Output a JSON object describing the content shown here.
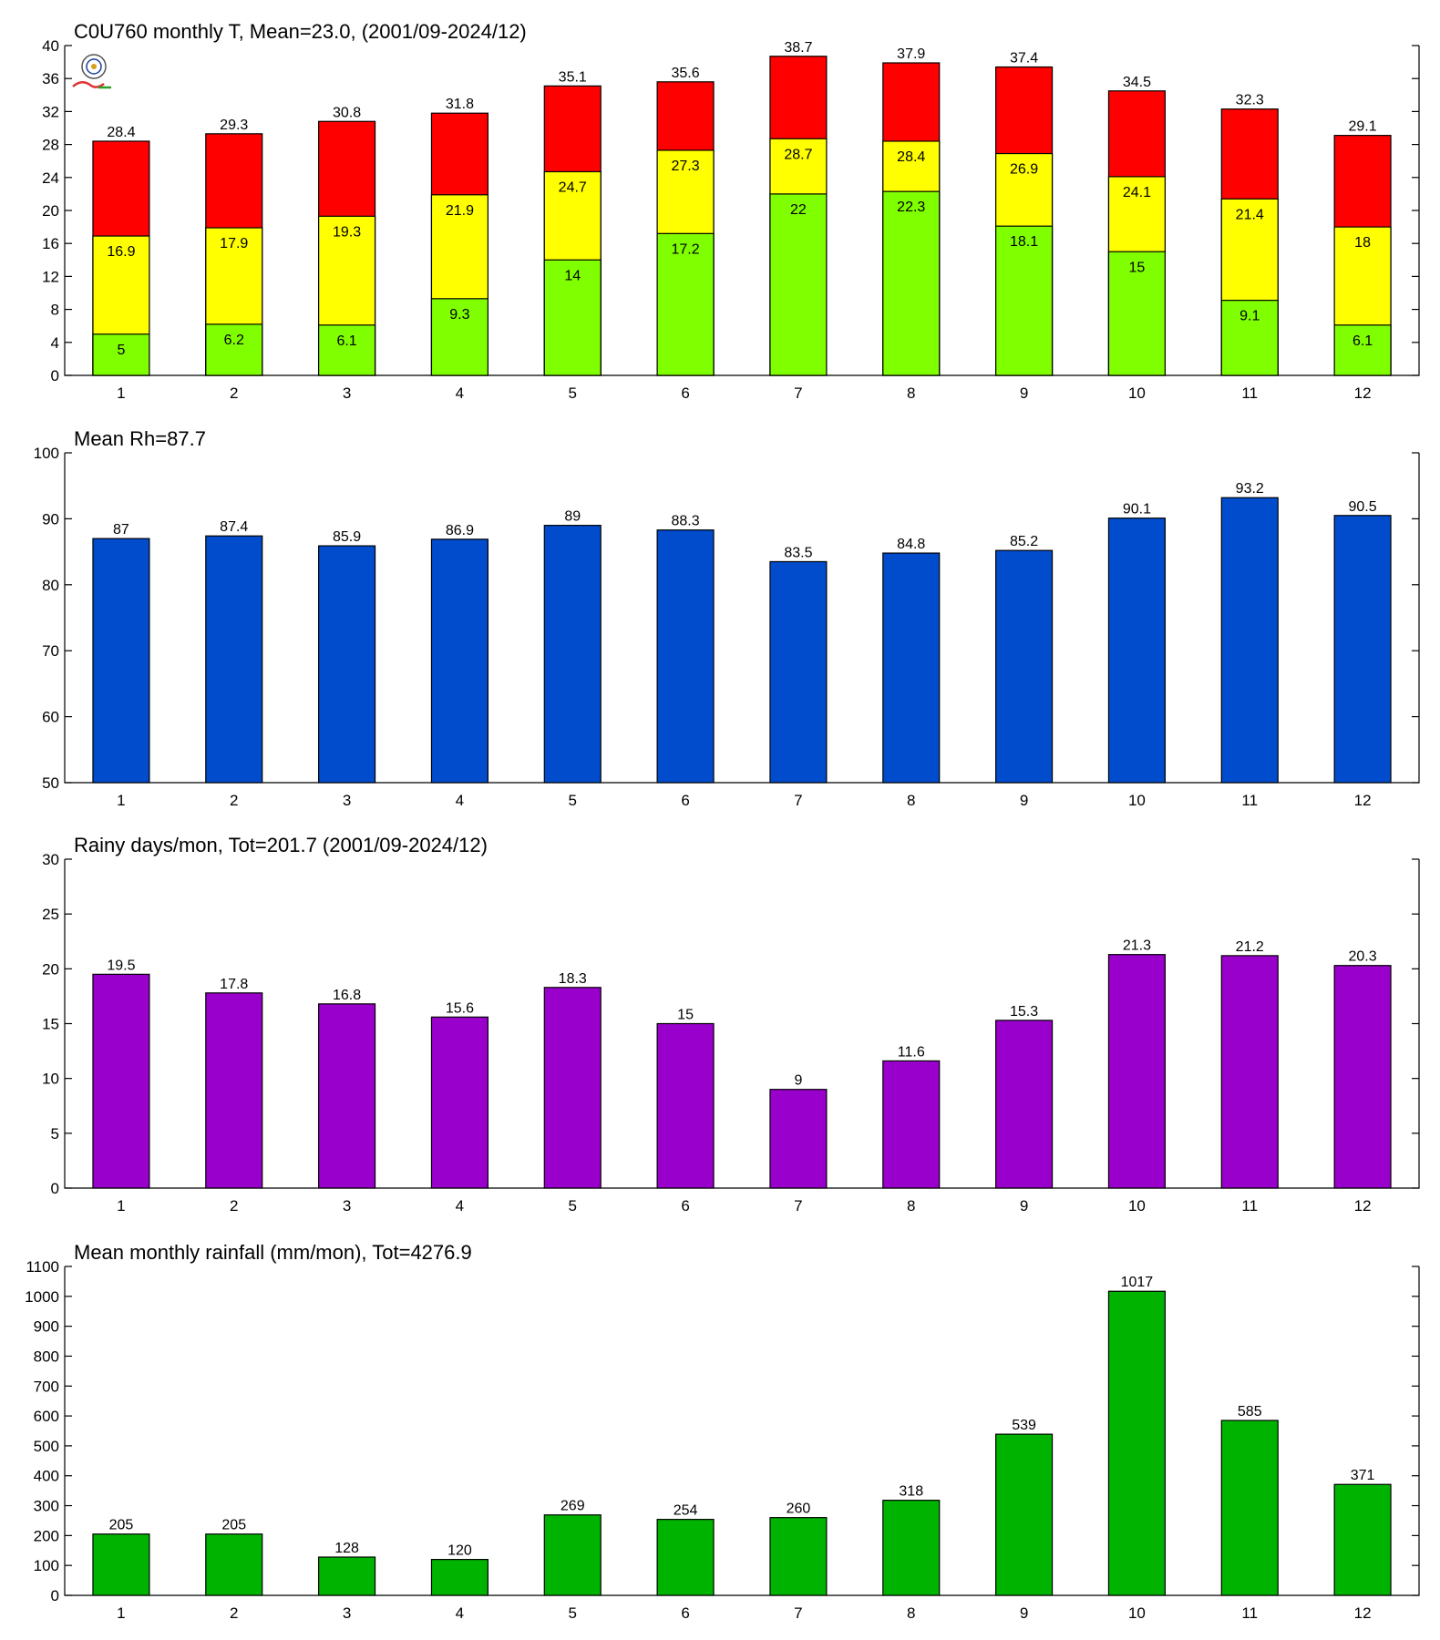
{
  "chart_data": [
    {
      "type": "bar",
      "subtype": "overlapping-stacked",
      "title": "C0U760 monthly T, Mean=23.0, (2001/09-2024/12)",
      "categories": [
        "1",
        "2",
        "3",
        "4",
        "5",
        "6",
        "7",
        "8",
        "9",
        "10",
        "11",
        "12"
      ],
      "ylim": [
        0,
        40
      ],
      "yticks": [
        0,
        4,
        8,
        12,
        16,
        20,
        24,
        28,
        32,
        36,
        40
      ],
      "series": [
        {
          "values": [
            28.4,
            29.3,
            30.8,
            31.8,
            35.1,
            35.6,
            38.7,
            37.9,
            37.4,
            34.5,
            32.3,
            29.1
          ],
          "color": "#ff0000"
        },
        {
          "values": [
            16.9,
            17.9,
            19.3,
            21.9,
            24.7,
            27.3,
            28.7,
            28.4,
            26.9,
            24.1,
            21.4,
            18
          ],
          "color": "#ffff00"
        },
        {
          "values": [
            5,
            6.2,
            6.1,
            9.3,
            14,
            17.2,
            22,
            22.3,
            18.1,
            15,
            9.1,
            6.1
          ],
          "color": "#80ff00"
        }
      ],
      "logo": "station-lab-logo"
    },
    {
      "type": "bar",
      "title": "Mean Rh=87.7",
      "categories": [
        "1",
        "2",
        "3",
        "4",
        "5",
        "6",
        "7",
        "8",
        "9",
        "10",
        "11",
        "12"
      ],
      "ylim": [
        50,
        100
      ],
      "yticks": [
        50,
        60,
        70,
        80,
        90,
        100
      ],
      "series": [
        {
          "values": [
            87,
            87.4,
            85.9,
            86.9,
            89,
            88.3,
            83.5,
            84.8,
            85.2,
            90.1,
            93.2,
            90.5
          ],
          "color": "#004ccc"
        }
      ]
    },
    {
      "type": "bar",
      "title": "Rainy days/mon, Tot=201.7 (2001/09-2024/12)",
      "categories": [
        "1",
        "2",
        "3",
        "4",
        "5",
        "6",
        "7",
        "8",
        "9",
        "10",
        "11",
        "12"
      ],
      "ylim": [
        0,
        30
      ],
      "yticks": [
        0,
        5,
        10,
        15,
        20,
        25,
        30
      ],
      "series": [
        {
          "values": [
            19.5,
            17.8,
            16.8,
            15.6,
            18.3,
            15,
            9,
            11.6,
            15.3,
            21.3,
            21.2,
            20.3
          ],
          "color": "#9900cc"
        }
      ]
    },
    {
      "type": "bar",
      "title": "Mean monthly rainfall (mm/mon), Tot=4276.9",
      "categories": [
        "1",
        "2",
        "3",
        "4",
        "5",
        "6",
        "7",
        "8",
        "9",
        "10",
        "11",
        "12"
      ],
      "ylim": [
        0,
        1100
      ],
      "yticks": [
        0,
        100,
        200,
        300,
        400,
        500,
        600,
        700,
        800,
        900,
        1000,
        1100
      ],
      "series": [
        {
          "values": [
            205,
            205,
            128,
            120,
            269,
            254,
            260,
            318,
            539,
            1017,
            585,
            371
          ],
          "color": "#00b300"
        }
      ]
    }
  ]
}
